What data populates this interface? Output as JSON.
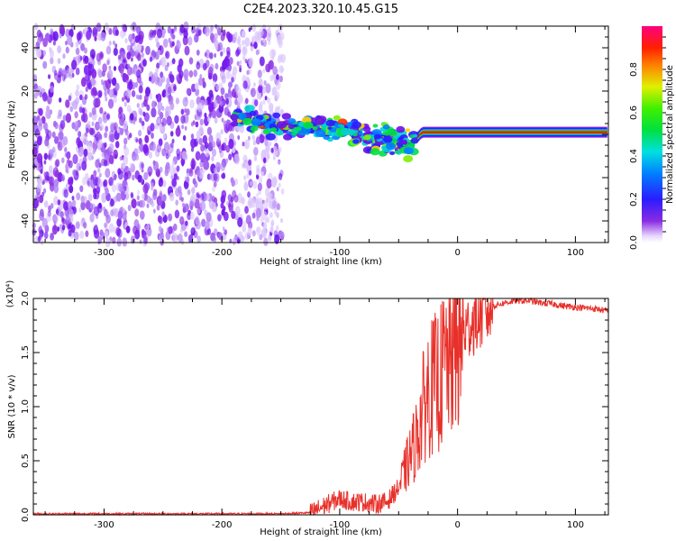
{
  "title": "C2E4.2023.320.10.45.G15",
  "colors": {
    "snr_line": "#e8302a",
    "speckle": "#7a1cf0",
    "background": "#ffffff"
  },
  "chart_data": [
    {
      "type": "heatmap",
      "xlabel": "Height of straight line (km)",
      "ylabel": "Frequency (Hz)",
      "xlim": [
        -360,
        128
      ],
      "ylim": [
        -50,
        50
      ],
      "xticks": [
        -300,
        -200,
        -100,
        0,
        100
      ],
      "yticks": [
        -40,
        -20,
        0,
        20,
        40
      ],
      "grid": false,
      "colorbar": {
        "label": "Normalized spectral amplitude",
        "range": [
          0,
          1
        ],
        "ticks": [
          "0.0",
          "0.2",
          "0.4",
          "0.6",
          "0.8"
        ],
        "colormap": "rainbow (white-violet-blue-cyan-green-yellow-red-magenta)"
      },
      "features": [
        {
          "name": "noise",
          "x_range": [
            -360,
            -148
          ],
          "freq_range": [
            -50,
            50
          ],
          "amplitude": 0.25
        },
        {
          "name": "signal",
          "x_range": [
            -190,
            128
          ],
          "center_freq_points": [
            [
              -190,
              8
            ],
            [
              -170,
              6
            ],
            [
              -150,
              3
            ],
            [
              -130,
              4
            ],
            [
              -110,
              3
            ],
            [
              -90,
              1
            ],
            [
              -70,
              -2
            ],
            [
              -55,
              -3
            ],
            [
              -40,
              -5
            ],
            [
              -30,
              1
            ],
            [
              -10,
              1
            ],
            [
              20,
              1
            ],
            [
              60,
              1
            ],
            [
              100,
              1
            ],
            [
              128,
              1
            ]
          ],
          "peak_amplitude": 0.9
        }
      ]
    },
    {
      "type": "line",
      "xlabel": "Height of straight line (km)",
      "ylabel": "SNR (10 * v/v)",
      "y_multiplier": "(x10⁴)",
      "xlim": [
        -360,
        128
      ],
      "ylim": [
        0,
        2.0
      ],
      "xticks": [
        -300,
        -200,
        -100,
        0,
        100
      ],
      "yticks": [
        "0.0",
        "0.5",
        "1.0",
        "1.5",
        "2.0"
      ],
      "grid": false,
      "series": [
        {
          "color": "#e8302a",
          "x": [
            -360,
            -300,
            -200,
            -150,
            -125,
            -110,
            -100,
            -90,
            -80,
            -70,
            -60,
            -50,
            -45,
            -40,
            -35,
            -30,
            -25,
            -20,
            -15,
            -10,
            -5,
            0,
            10,
            20,
            30,
            40,
            50,
            60,
            70,
            80,
            90,
            100,
            110,
            120,
            128
          ],
          "y": [
            0.01,
            0.01,
            0.01,
            0.01,
            0.02,
            0.1,
            0.15,
            0.12,
            0.12,
            0.1,
            0.12,
            0.25,
            0.4,
            0.55,
            0.7,
            0.95,
            1.15,
            1.2,
            1.25,
            1.4,
            1.5,
            1.6,
            1.75,
            1.85,
            1.93,
            1.96,
            1.98,
            1.98,
            1.96,
            1.95,
            1.93,
            1.92,
            1.91,
            1.9,
            1.88
          ]
        }
      ]
    }
  ]
}
